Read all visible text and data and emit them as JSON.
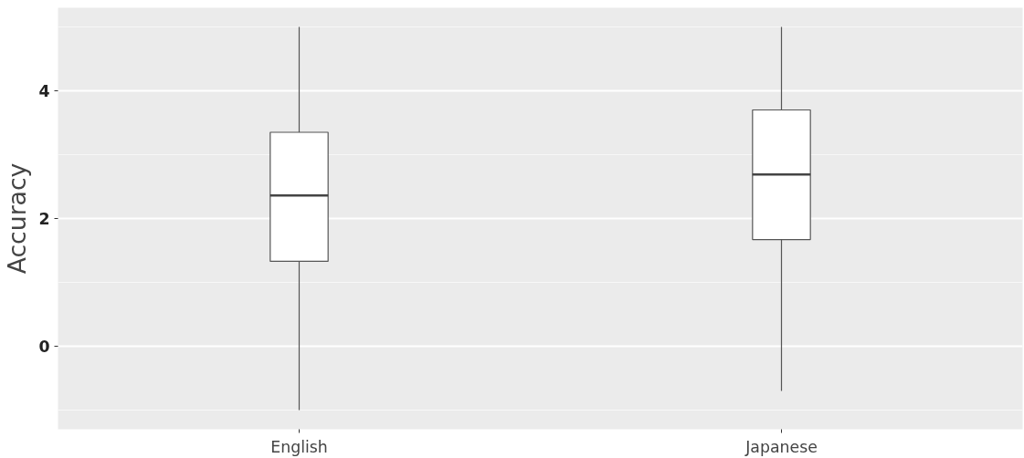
{
  "chart_data": {
    "type": "box",
    "ylabel": "Accuracy",
    "categories": [
      "English",
      "Japanese"
    ],
    "boxes": [
      {
        "low": -1,
        "q1": 1.33,
        "median": 2.36,
        "q3": 3.35,
        "high": 5
      },
      {
        "low": -0.7,
        "q1": 1.67,
        "median": 2.69,
        "q3": 3.7,
        "high": 5
      }
    ],
    "ylim": [
      -1.3,
      5.3
    ],
    "yticks": [
      0,
      2,
      4
    ],
    "grid": true
  }
}
